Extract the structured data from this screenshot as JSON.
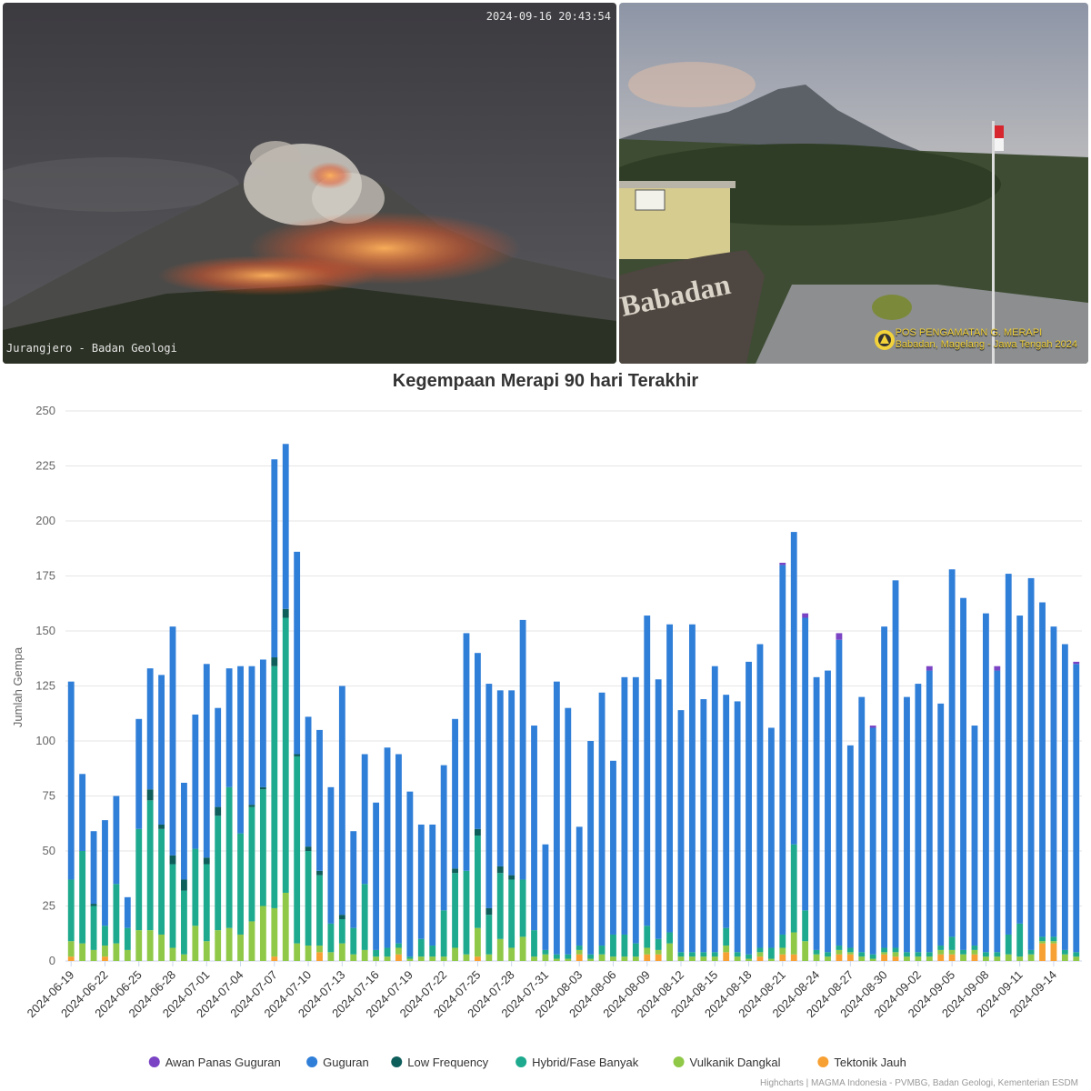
{
  "photos": {
    "left": {
      "timestamp": "2024-09-16 20:43:54",
      "label": "Jurangjero - Badan Geologi"
    },
    "right": {
      "sign_text": "Babadan",
      "station_line1": "POS PENGAMATAN G. MERAPI",
      "station_line2": "Babadan, Magelang - Jawa Tengah 2024"
    }
  },
  "credits": "Highcharts | MAGMA Indonesia - PVMBG, Badan Geologi, Kementerian ESDM",
  "chart_data": {
    "type": "bar",
    "stacked": true,
    "title": "Kegempaan Merapi 90 hari Terakhir",
    "ylabel": "Jumlah Gempa",
    "ylim": [
      0,
      250
    ],
    "yticks": [
      0,
      25,
      50,
      75,
      100,
      125,
      150,
      175,
      200,
      225,
      250
    ],
    "grid": true,
    "legend_position": "bottom",
    "x": [
      "2024-06-19",
      "2024-06-20",
      "2024-06-21",
      "2024-06-22",
      "2024-06-23",
      "2024-06-24",
      "2024-06-25",
      "2024-06-26",
      "2024-06-27",
      "2024-06-28",
      "2024-06-29",
      "2024-06-30",
      "2024-07-01",
      "2024-07-02",
      "2024-07-03",
      "2024-07-04",
      "2024-07-05",
      "2024-07-06",
      "2024-07-07",
      "2024-07-08",
      "2024-07-09",
      "2024-07-10",
      "2024-07-11",
      "2024-07-12",
      "2024-07-13",
      "2024-07-14",
      "2024-07-15",
      "2024-07-16",
      "2024-07-17",
      "2024-07-18",
      "2024-07-19",
      "2024-07-20",
      "2024-07-21",
      "2024-07-22",
      "2024-07-23",
      "2024-07-24",
      "2024-07-25",
      "2024-07-26",
      "2024-07-27",
      "2024-07-28",
      "2024-07-29",
      "2024-07-30",
      "2024-07-31",
      "2024-08-01",
      "2024-08-02",
      "2024-08-03",
      "2024-08-04",
      "2024-08-05",
      "2024-08-06",
      "2024-08-07",
      "2024-08-08",
      "2024-08-09",
      "2024-08-10",
      "2024-08-11",
      "2024-08-12",
      "2024-08-13",
      "2024-08-14",
      "2024-08-15",
      "2024-08-16",
      "2024-08-17",
      "2024-08-18",
      "2024-08-19",
      "2024-08-20",
      "2024-08-21",
      "2024-08-22",
      "2024-08-23",
      "2024-08-24",
      "2024-08-25",
      "2024-08-26",
      "2024-08-27",
      "2024-08-28",
      "2024-08-29",
      "2024-08-30",
      "2024-08-31",
      "2024-09-01",
      "2024-09-02",
      "2024-09-03",
      "2024-09-04",
      "2024-09-05",
      "2024-09-06",
      "2024-09-07",
      "2024-09-08",
      "2024-09-09",
      "2024-09-10",
      "2024-09-11",
      "2024-09-12",
      "2024-09-13",
      "2024-09-14",
      "2024-09-15",
      "2024-09-16"
    ],
    "tick_labels": [
      "2024-06-19",
      "2024-06-22",
      "2024-06-25",
      "2024-06-28",
      "2024-07-01",
      "2024-07-04",
      "2024-07-07",
      "2024-07-10",
      "2024-07-13",
      "2024-07-16",
      "2024-07-19",
      "2024-07-22",
      "2024-07-25",
      "2024-07-28",
      "2024-07-31",
      "2024-08-03",
      "2024-08-06",
      "2024-08-09",
      "2024-08-12",
      "2024-08-15",
      "2024-08-18",
      "2024-08-21",
      "2024-08-24",
      "2024-08-27",
      "2024-08-30",
      "2024-09-02",
      "2024-09-05",
      "2024-09-08",
      "2024-09-11",
      "2024-09-14"
    ],
    "series": [
      {
        "name": "Tektonik Jauh",
        "color": "#f7a033",
        "values": [
          2,
          0,
          0,
          2,
          0,
          0,
          0,
          0,
          0,
          0,
          0,
          0,
          0,
          0,
          0,
          0,
          0,
          0,
          2,
          0,
          0,
          0,
          4,
          0,
          0,
          0,
          0,
          0,
          0,
          3,
          0,
          0,
          0,
          0,
          0,
          0,
          2,
          0,
          0,
          0,
          0,
          0,
          0,
          0,
          0,
          3,
          0,
          0,
          0,
          0,
          0,
          3,
          3,
          0,
          0,
          0,
          0,
          0,
          4,
          0,
          0,
          2,
          0,
          3,
          3,
          0,
          0,
          0,
          3,
          3,
          0,
          0,
          3,
          2,
          0,
          0,
          0,
          3,
          3,
          0,
          3,
          0,
          0,
          0,
          0,
          0,
          8,
          8,
          0,
          0
        ]
      },
      {
        "name": "Vulkanik Dangkal",
        "color": "#90c848",
        "values": [
          7,
          8,
          5,
          5,
          8,
          5,
          14,
          14,
          12,
          6,
          3,
          16,
          9,
          14,
          15,
          12,
          18,
          25,
          22,
          31,
          8,
          7,
          3,
          4,
          8,
          3,
          5,
          2,
          2,
          3,
          1,
          2,
          2,
          2,
          6,
          3,
          13,
          3,
          10,
          6,
          11,
          2,
          3,
          1,
          1,
          2,
          1,
          3,
          2,
          2,
          2,
          3,
          2,
          8,
          2,
          2,
          2,
          2,
          3,
          2,
          1,
          2,
          1,
          3,
          10,
          9,
          3,
          2,
          2,
          1,
          2,
          1,
          1,
          2,
          2,
          2,
          2,
          2,
          2,
          3,
          2,
          2,
          2,
          3,
          2,
          3,
          1,
          1,
          3,
          2
        ]
      },
      {
        "name": "Hybrid/Fase Banyak",
        "color": "#1eaa8e",
        "values": [
          28,
          42,
          20,
          9,
          27,
          10,
          46,
          59,
          48,
          38,
          29,
          35,
          35,
          52,
          64,
          46,
          52,
          53,
          110,
          125,
          85,
          43,
          32,
          13,
          11,
          12,
          30,
          3,
          4,
          2,
          1,
          8,
          5,
          21,
          34,
          38,
          42,
          18,
          30,
          31,
          26,
          12,
          2,
          2,
          2,
          2,
          2,
          4,
          10,
          10,
          6,
          10,
          5,
          5,
          2,
          2,
          2,
          2,
          8,
          2,
          2,
          2,
          5,
          6,
          40,
          14,
          2,
          2,
          2,
          2,
          2,
          2,
          2,
          2,
          2,
          2,
          2,
          2,
          6,
          2,
          2,
          2,
          2,
          9,
          15,
          2,
          2,
          2,
          2,
          2
        ]
      },
      {
        "name": "Low Frequency",
        "color": "#0e5e5c",
        "values": [
          0,
          0,
          1,
          0,
          0,
          0,
          0,
          5,
          2,
          4,
          5,
          0,
          3,
          4,
          0,
          0,
          1,
          1,
          4,
          4,
          1,
          2,
          2,
          0,
          2,
          0,
          0,
          0,
          0,
          0,
          0,
          0,
          0,
          0,
          2,
          0,
          3,
          3,
          3,
          2,
          0,
          0,
          0,
          0,
          0,
          0,
          0,
          0,
          0,
          0,
          0,
          0,
          0,
          0,
          0,
          0,
          0,
          0,
          0,
          0,
          0,
          0,
          0,
          0,
          0,
          0,
          0,
          0,
          0,
          0,
          0,
          0,
          0,
          0,
          0,
          0,
          0,
          0,
          0,
          0,
          0,
          0,
          0,
          0,
          0,
          0,
          0,
          0,
          0,
          0
        ]
      },
      {
        "name": "Guguran",
        "color": "#2f7ed8",
        "values": [
          90,
          35,
          33,
          48,
          40,
          14,
          50,
          55,
          68,
          104,
          44,
          61,
          88,
          45,
          54,
          76,
          63,
          58,
          90,
          75,
          92,
          59,
          64,
          62,
          104,
          44,
          59,
          67,
          91,
          86,
          75,
          52,
          55,
          66,
          68,
          108,
          80,
          102,
          80,
          84,
          118,
          93,
          48,
          124,
          112,
          54,
          97,
          115,
          79,
          117,
          121,
          141,
          118,
          140,
          110,
          149,
          115,
          130,
          106,
          114,
          133,
          138,
          100,
          168,
          142,
          133,
          124,
          128,
          139,
          92,
          116,
          103,
          146,
          167,
          116,
          122,
          128,
          110,
          167,
          160,
          100,
          154,
          128,
          164,
          140,
          169,
          152,
          141,
          139,
          131
        ]
      },
      {
        "name": "Awan Panas Guguran",
        "color": "#7a44c4",
        "values": [
          0,
          0,
          0,
          0,
          0,
          0,
          0,
          0,
          0,
          0,
          0,
          0,
          0,
          0,
          0,
          0,
          0,
          0,
          0,
          0,
          0,
          0,
          0,
          0,
          0,
          0,
          0,
          0,
          0,
          0,
          0,
          0,
          0,
          0,
          0,
          0,
          0,
          0,
          0,
          0,
          0,
          0,
          0,
          0,
          0,
          0,
          0,
          0,
          0,
          0,
          0,
          0,
          0,
          0,
          0,
          0,
          0,
          0,
          0,
          0,
          0,
          0,
          0,
          1,
          0,
          2,
          0,
          0,
          3,
          0,
          0,
          1,
          0,
          0,
          0,
          0,
          2,
          0,
          0,
          0,
          0,
          0,
          2,
          0,
          0,
          0,
          0,
          0,
          0,
          1
        ]
      }
    ],
    "legend_order": [
      "Awan Panas Guguran",
      "Guguran",
      "Low Frequency",
      "Hybrid/Fase Banyak",
      "Vulkanik Dangkal",
      "Tektonik Jauh"
    ]
  }
}
